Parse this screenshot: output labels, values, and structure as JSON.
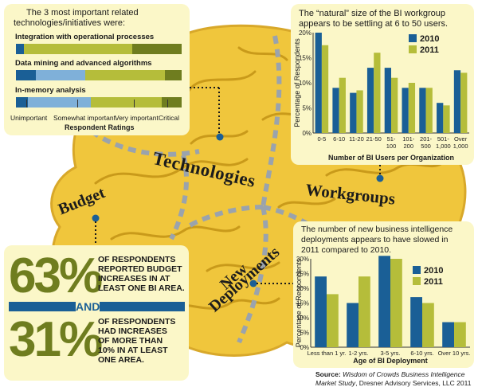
{
  "colors": {
    "dark_blue": "#1a5f96",
    "light_blue": "#7fb0d9",
    "olive": "#b5bd3a",
    "dark_olive": "#6f7d1f",
    "brain": "#f0c63c",
    "brain_dark": "#c99a1a",
    "panel": "#fbf7c8",
    "dashes": "#9aa3ad"
  },
  "related_tech": {
    "title_line1": "The 3 most important related",
    "title_line2": "technologies/initiatives were:",
    "items": [
      {
        "label": "Integration with operational processes",
        "segments": [
          0.05,
          0.0,
          0.65,
          0.3
        ]
      },
      {
        "label": "Data mining and advanced algorithms",
        "segments": [
          0.12,
          0.3,
          0.48,
          0.1
        ]
      },
      {
        "label": "In-memory analysis",
        "segments": [
          0.07,
          0.38,
          0.43,
          0.12
        ]
      }
    ],
    "scale": [
      "Unimportant",
      "Somewhat important",
      "Very important",
      "Critical"
    ],
    "scale_title": "Respondent Ratings"
  },
  "workgroup_text": {
    "line1": "The “natural” size of the BI workgroup",
    "line2": "appears to be settling at 6 to 50 users."
  },
  "deploy_text": {
    "line1": "The number of new business intelligence",
    "line2": "deployments appears to have slowed in",
    "line3": "2011 compared to 2010."
  },
  "labels": {
    "technologies": "Technologies",
    "workgroups": "Workgroups",
    "budget": "Budget",
    "new": "New",
    "deployments": "Deployments"
  },
  "budget_stats": {
    "pct1": "63%",
    "text1": [
      "OF RESPONDENTS",
      "REPORTED BUDGET",
      "INCREASES IN AT",
      "LEAST ONE BI AREA."
    ],
    "and": "AND",
    "pct2": "31%",
    "text2": [
      "OF RESPONDENTS",
      "HAD INCREASES",
      "OF MORE THAN",
      "10% IN AT LEAST",
      "ONE AREA."
    ]
  },
  "source": {
    "label": "Source:",
    "line1": "Wisdom of Crowds Business Intelligence",
    "line2_italic": "Market Study",
    "line2_rest": ", Dresner Advisory Services, LLC 2011"
  },
  "chart_data": [
    {
      "type": "bar",
      "title": "The “natural” size of the BI workgroup appears to be settling at 6 to 50 users.",
      "categories": [
        "0-5",
        "6-10",
        "11-20",
        "21-50",
        "51-100",
        "101-200",
        "201-500",
        "501-1,000",
        "Over 1,000"
      ],
      "series": [
        {
          "name": "2010",
          "values": [
            20,
            9,
            8,
            13,
            13,
            9,
            9,
            6,
            12.5
          ]
        },
        {
          "name": "2011",
          "values": [
            17.5,
            11,
            8.5,
            16,
            11,
            10,
            9,
            5.5,
            12
          ]
        }
      ],
      "xlabel": "Number of BI Users per Organization",
      "ylabel": "Percentage of Respondents",
      "ylim": [
        0,
        20
      ],
      "yticks": [
        "0%",
        "5%",
        "10%",
        "15%",
        "20%"
      ],
      "legend": [
        "2010",
        "2011"
      ]
    },
    {
      "type": "bar",
      "title": "The number of new business intelligence deployments appears to have slowed in 2011 compared to 2010.",
      "categories": [
        "Less than 1 yr.",
        "1-2 yrs.",
        "3-5 yrs.",
        "6-10 yrs.",
        "Over 10 yrs."
      ],
      "series": [
        {
          "name": "2010",
          "values": [
            24,
            15,
            31,
            17,
            8.5
          ]
        },
        {
          "name": "2011",
          "values": [
            18,
            24,
            30,
            15,
            8.5
          ]
        }
      ],
      "xlabel": "Age of BI Deployment",
      "ylabel": "Percentage of Respondents",
      "ylim": [
        0,
        30
      ],
      "yticks": [
        "0%",
        "5%",
        "10%",
        "15%",
        "20%",
        "25%",
        "30%"
      ],
      "legend": [
        "2010",
        "2011"
      ]
    }
  ]
}
